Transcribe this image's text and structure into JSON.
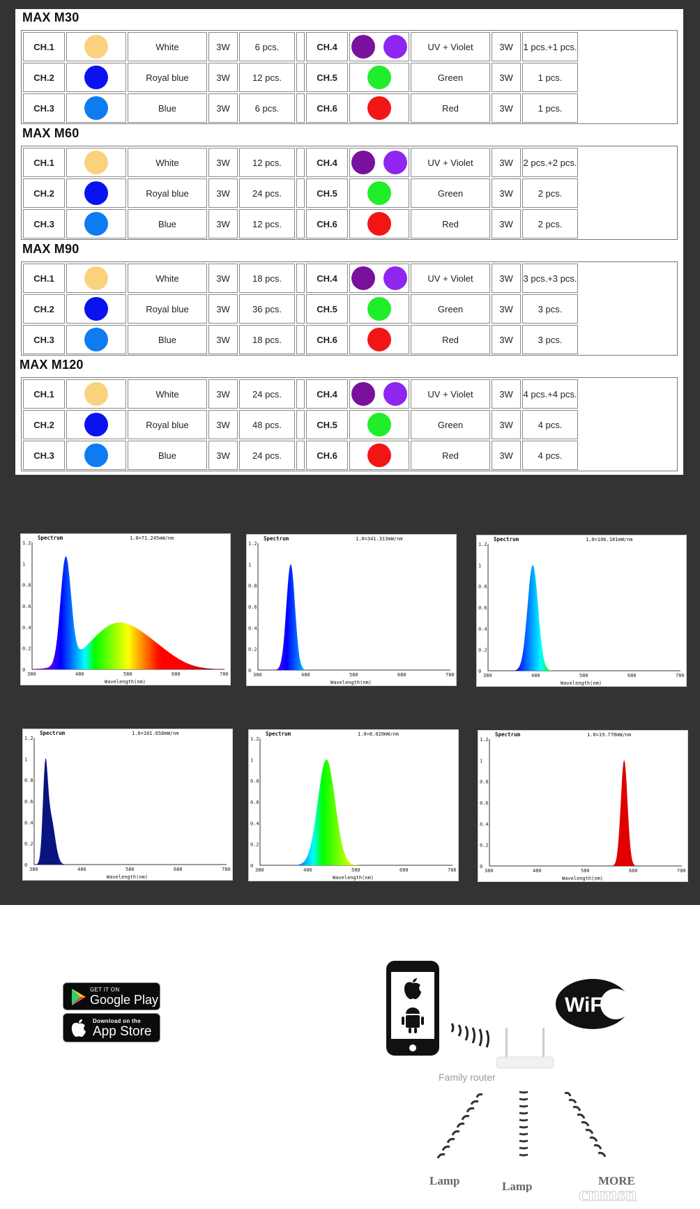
{
  "sections": [
    {
      "title": "MAX M30",
      "rows": [
        [
          {
            "ch": "CH.1",
            "colors": [
              "#fad27e"
            ],
            "name": "White",
            "watt": "3W",
            "qty": "6 pcs."
          },
          {
            "ch": "CH.4",
            "colors": [
              "#7a119e",
              "#8e26f0"
            ],
            "name": "UV + Violet",
            "watt": "3W",
            "qty": "1 pcs.+1 pcs."
          }
        ],
        [
          {
            "ch": "CH.2",
            "colors": [
              "#0b12f0"
            ],
            "name": "Royal blue",
            "watt": "3W",
            "qty": "12 pcs."
          },
          {
            "ch": "CH.5",
            "colors": [
              "#20ee2b"
            ],
            "name": "Green",
            "watt": "3W",
            "qty": "1 pcs."
          }
        ],
        [
          {
            "ch": "CH.3",
            "colors": [
              "#0f7bf0"
            ],
            "name": "Blue",
            "watt": "3W",
            "qty": "6 pcs."
          },
          {
            "ch": "CH.6",
            "colors": [
              "#f21515"
            ],
            "name": "Red",
            "watt": "3W",
            "qty": "1 pcs."
          }
        ]
      ]
    },
    {
      "title": "MAX M60",
      "rows": [
        [
          {
            "ch": "CH.1",
            "colors": [
              "#fad27e"
            ],
            "name": "White",
            "watt": "3W",
            "qty": "12 pcs."
          },
          {
            "ch": "CH.4",
            "colors": [
              "#7a119e",
              "#8e26f0"
            ],
            "name": "UV + Violet",
            "watt": "3W",
            "qty": "2 pcs.+2 pcs."
          }
        ],
        [
          {
            "ch": "CH.2",
            "colors": [
              "#0b12f0"
            ],
            "name": "Royal blue",
            "watt": "3W",
            "qty": "24 pcs."
          },
          {
            "ch": "CH.5",
            "colors": [
              "#20ee2b"
            ],
            "name": "Green",
            "watt": "3W",
            "qty": "2 pcs."
          }
        ],
        [
          {
            "ch": "CH.3",
            "colors": [
              "#0f7bf0"
            ],
            "name": "Blue",
            "watt": "3W",
            "qty": "12 pcs."
          },
          {
            "ch": "CH.6",
            "colors": [
              "#f21515"
            ],
            "name": "Red",
            "watt": "3W",
            "qty": "2 pcs."
          }
        ]
      ]
    },
    {
      "title": "MAX M90",
      "rows": [
        [
          {
            "ch": "CH.1",
            "colors": [
              "#fad27e"
            ],
            "name": "White",
            "watt": "3W",
            "qty": "18 pcs."
          },
          {
            "ch": "CH.4",
            "colors": [
              "#7a119e",
              "#8e26f0"
            ],
            "name": "UV + Violet",
            "watt": "3W",
            "qty": "3 pcs.+3 pcs."
          }
        ],
        [
          {
            "ch": "CH.2",
            "colors": [
              "#0b12f0"
            ],
            "name": "Royal blue",
            "watt": "3W",
            "qty": "36 pcs."
          },
          {
            "ch": "CH.5",
            "colors": [
              "#20ee2b"
            ],
            "name": "Green",
            "watt": "3W",
            "qty": "3 pcs."
          }
        ],
        [
          {
            "ch": "CH.3",
            "colors": [
              "#0f7bf0"
            ],
            "name": "Blue",
            "watt": "3W",
            "qty": "18 pcs."
          },
          {
            "ch": "CH.6",
            "colors": [
              "#f21515"
            ],
            "name": "Red",
            "watt": "3W",
            "qty": "3 pcs."
          }
        ]
      ]
    },
    {
      "title": "MAX M120",
      "rows": [
        [
          {
            "ch": "CH.1",
            "colors": [
              "#fad27e"
            ],
            "name": "White",
            "watt": "3W",
            "qty": "24 pcs."
          },
          {
            "ch": "CH.4",
            "colors": [
              "#7a119e",
              "#8e26f0"
            ],
            "name": "UV + Violet",
            "watt": "3W",
            "qty": "4 pcs.+4 pcs."
          }
        ],
        [
          {
            "ch": "CH.2",
            "colors": [
              "#0b12f0"
            ],
            "name": "Royal blue",
            "watt": "3W",
            "qty": "48 pcs."
          },
          {
            "ch": "CH.5",
            "colors": [
              "#20ee2b"
            ],
            "name": "Green",
            "watt": "3W",
            "qty": "4 pcs."
          }
        ],
        [
          {
            "ch": "CH.3",
            "colors": [
              "#0f7bf0"
            ],
            "name": "Blue",
            "watt": "3W",
            "qty": "24 pcs."
          },
          {
            "ch": "CH.6",
            "colors": [
              "#f21515"
            ],
            "name": "Red",
            "watt": "3W",
            "qty": "4 pcs."
          }
        ]
      ]
    }
  ],
  "chart_data": [
    {
      "type": "area",
      "title": "Spectrum",
      "note": "1.0=71.245mW/nm",
      "xlabel": "Wavelength(nm)",
      "xlim": [
        380,
        780
      ],
      "ylim": [
        0,
        1.2
      ],
      "xticks": [
        380,
        480,
        580,
        680,
        780
      ],
      "yticks": [
        0,
        0.2,
        0.4,
        0.6,
        0.8,
        1.0,
        1.2
      ],
      "peaks": [
        {
          "center": 450,
          "width": 11,
          "height": 1.0
        },
        {
          "center": 555,
          "width": 55,
          "height": 0.42
        },
        {
          "center": 640,
          "width": 45,
          "height": 0.12
        }
      ],
      "fill": "spectral"
    },
    {
      "type": "area",
      "title": "Spectrum",
      "note": "1.0=341.313mW/nm",
      "xlabel": "Wavelength(nm)",
      "xlim": [
        380,
        780
      ],
      "ylim": [
        0,
        1.2
      ],
      "xticks": [
        380,
        480,
        580,
        680,
        780
      ],
      "yticks": [
        0,
        0.2,
        0.4,
        0.6,
        0.8,
        1.0,
        1.2
      ],
      "peaks": [
        {
          "center": 448,
          "width": 9,
          "height": 1.0
        }
      ],
      "fill": "spectral"
    },
    {
      "type": "area",
      "title": "Spectrum",
      "note": "1.0=106.181mW/nm",
      "xlabel": "Wavelength(nm)",
      "xlim": [
        380,
        780
      ],
      "ylim": [
        0,
        1.2
      ],
      "xticks": [
        380,
        480,
        580,
        680,
        780
      ],
      "yticks": [
        0,
        0.2,
        0.4,
        0.6,
        0.8,
        1.0,
        1.2
      ],
      "peaks": [
        {
          "center": 473,
          "width": 11,
          "height": 1.0
        }
      ],
      "fill": "spectral"
    },
    {
      "type": "area",
      "title": "Spectrum",
      "note": "1.0=101.658mW/nm",
      "xlabel": "Wavelength(nm)",
      "xlim": [
        380,
        780
      ],
      "ylim": [
        0,
        1.2
      ],
      "xticks": [
        380,
        480,
        580,
        680,
        780
      ],
      "yticks": [
        0,
        0.2,
        0.4,
        0.6,
        0.8,
        1.0,
        1.2
      ],
      "peaks": [
        {
          "center": 403,
          "width": 5,
          "height": 0.78
        },
        {
          "center": 414,
          "width": 9,
          "height": 0.45
        }
      ],
      "fill": "#0a1480"
    },
    {
      "type": "area",
      "title": "Spectrum",
      "note": "1.0=8.020mW/nm",
      "xlabel": "Wavelength(nm)",
      "xlim": [
        380,
        780
      ],
      "ylim": [
        0,
        1.2
      ],
      "xticks": [
        380,
        480,
        580,
        680,
        780
      ],
      "yticks": [
        0,
        0.2,
        0.4,
        0.6,
        0.8,
        1.0,
        1.2
      ],
      "peaks": [
        {
          "center": 518,
          "width": 18,
          "height": 1.0
        }
      ],
      "fill": "spectral"
    },
    {
      "type": "area",
      "title": "Spectrum",
      "note": "1.0=19.778mW/nm",
      "xlabel": "Wavelength(nm)",
      "xlim": [
        380,
        780
      ],
      "ylim": [
        0,
        1.2
      ],
      "xticks": [
        380,
        480,
        580,
        680,
        780
      ],
      "yticks": [
        0,
        0.2,
        0.4,
        0.6,
        0.8,
        1.0,
        1.2
      ],
      "peaks": [
        {
          "center": 660,
          "width": 7,
          "height": 1.0
        }
      ],
      "fill": "#e00000"
    }
  ],
  "store": {
    "google_small": "GET IT ON",
    "google_big": "Google Play",
    "apple_small": "Download on the",
    "apple_big": "App Store"
  },
  "diagram": {
    "router_label": "Family router",
    "wifi_text": "WiFi",
    "lamp1": "Lamp",
    "lamp2": "Lamp",
    "more": "MORE",
    "watermark": "cnmsn"
  }
}
